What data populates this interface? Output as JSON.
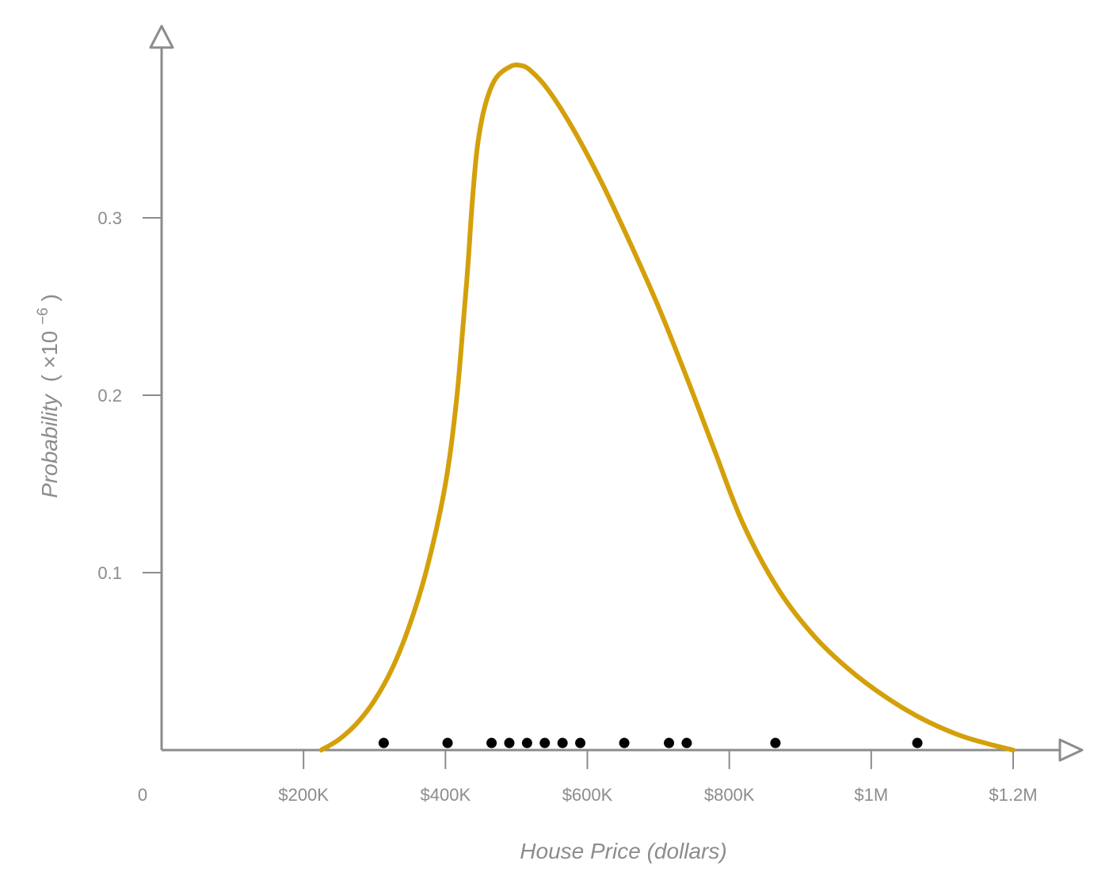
{
  "chart_data": {
    "type": "line",
    "xlabel": "House Price (dollars)",
    "ylabel": "Probability",
    "ylabel_multiplier": {
      "prefix": "( ×10",
      "exponent": "−6",
      "suffix": " )"
    },
    "xlim": [
      0,
      1250000
    ],
    "ylim": [
      0,
      0.385
    ],
    "x_ticks": [
      {
        "value": 0,
        "label": "0"
      },
      {
        "value": 200000,
        "label": "$200K"
      },
      {
        "value": 400000,
        "label": "$400K"
      },
      {
        "value": 600000,
        "label": "$600K"
      },
      {
        "value": 800000,
        "label": "$800K"
      },
      {
        "value": 1000000,
        "label": "$1M"
      },
      {
        "value": 1200000,
        "label": "$1.2M"
      }
    ],
    "y_ticks": [
      {
        "value": 0.1,
        "label": "0.1"
      },
      {
        "value": 0.2,
        "label": "0.2"
      },
      {
        "value": 0.3,
        "label": "0.3"
      }
    ],
    "grid": false,
    "series": [
      {
        "kind": "density-curve",
        "color": "#d4a00a",
        "x": [
          225000,
          250000,
          275000,
          300000,
          325000,
          350000,
          375000,
          400000,
          415000,
          425000,
          432000,
          438000,
          445000,
          455000,
          470000,
          490000,
          505000,
          520000,
          545000,
          580000,
          620000,
          660000,
          700000,
          740000,
          780000,
          820000,
          870000,
          920000,
          970000,
          1020000,
          1070000,
          1120000,
          1160000,
          1200000
        ],
        "y": [
          0.0,
          0.006,
          0.015,
          0.028,
          0.046,
          0.071,
          0.104,
          0.15,
          0.195,
          0.24,
          0.275,
          0.31,
          0.34,
          0.362,
          0.378,
          0.385,
          0.386,
          0.383,
          0.372,
          0.35,
          0.32,
          0.286,
          0.25,
          0.21,
          0.168,
          0.127,
          0.09,
          0.064,
          0.045,
          0.03,
          0.018,
          0.009,
          0.004,
          0.0
        ]
      },
      {
        "kind": "observations",
        "color": "#000000",
        "x": [
          313000,
          403000,
          465000,
          490000,
          515000,
          540000,
          565000,
          590000,
          652000,
          715000,
          740000,
          865000,
          1065000
        ],
        "y": [
          0.004,
          0.004,
          0.004,
          0.004,
          0.004,
          0.004,
          0.004,
          0.004,
          0.004,
          0.004,
          0.004,
          0.004,
          0.004
        ]
      }
    ]
  },
  "colors": {
    "axis": "#8c8c8c",
    "curve": "#d4a00a",
    "points": "#000000"
  }
}
